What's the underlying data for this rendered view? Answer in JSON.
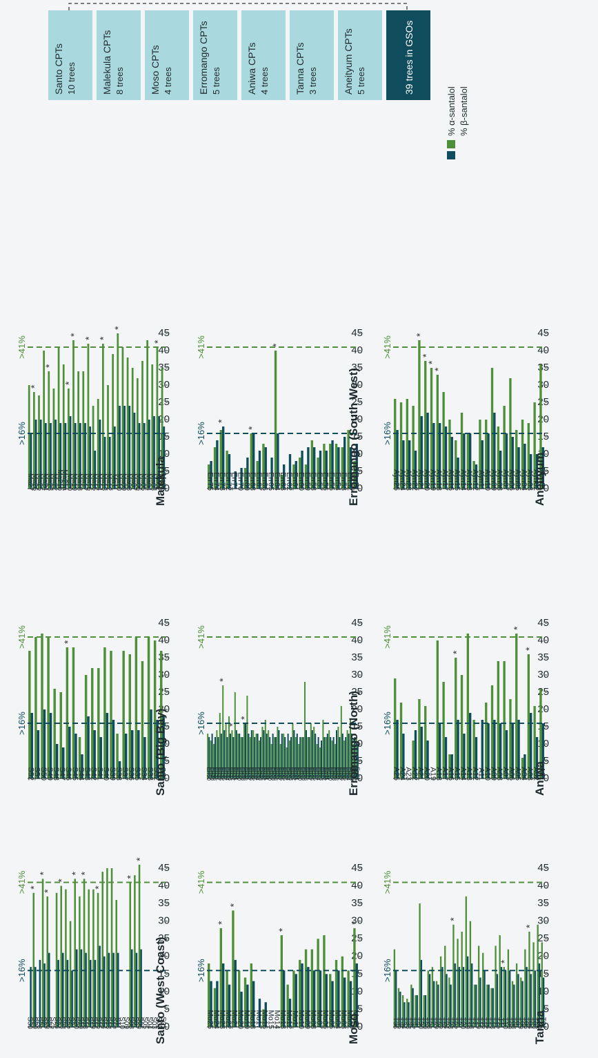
{
  "colors": {
    "alpha": "#4f8f3a",
    "beta": "#0f4d5c",
    "box_light": "#a9d8de",
    "box_dark": "#0f4d5c",
    "text": "#1f2a2e"
  },
  "y_ticks": [
    "0",
    "5",
    "10",
    "15",
    "20",
    "25",
    "30",
    "35",
    "40",
    "45"
  ],
  "threshold_labels": {
    "alpha": ">41%",
    "beta": ">16%"
  },
  "legend": {
    "alpha": "% α-santalol",
    "beta": "% β-santalol"
  },
  "region_boxes": [
    {
      "title": "Santo CPTs",
      "sub": "10 trees"
    },
    {
      "title": "Malekula CPTs",
      "sub": "8 trees"
    },
    {
      "title": "Moso CPTs",
      "sub": "4 trees"
    },
    {
      "title": "Erromango CPTs",
      "sub": "5 trees"
    },
    {
      "title": "Aniwa CPTs",
      "sub": "4 trees"
    },
    {
      "title": "Tanna CPTs",
      "sub": "3 trees"
    },
    {
      "title": "Aneityum CPTs",
      "sub": "5 trees"
    }
  ],
  "gso_box": "39 trees in GSOs",
  "chart_data": [
    {
      "type": "bar",
      "title": "Santo (West Coast)",
      "ylim": [
        0,
        45
      ],
      "thresholds": {
        "alpha": 41,
        "beta": 16
      },
      "categories": [
        "S01",
        "S02",
        "S03",
        "S04",
        "S05",
        "S06",
        "S07",
        "S08",
        "S09",
        "S10",
        "S11",
        "S12",
        "S13",
        "S14",
        "S15",
        "S16",
        "S17",
        "S18",
        "S19",
        "S20",
        "S21",
        "S22",
        "S23",
        "S24",
        "S25",
        "S26",
        "S27",
        "S28",
        "S29",
        "S30"
      ],
      "series": [
        {
          "name": "% α-santalol",
          "values": [
            0,
            0,
            0,
            0,
            0,
            46,
            43,
            41,
            0,
            0,
            36,
            45,
            45,
            44,
            38,
            39,
            39,
            42,
            37,
            42,
            30,
            39,
            40,
            38,
            0,
            37,
            42,
            0,
            38,
            0
          ]
        },
        {
          "name": "% β-santalol",
          "values": [
            0,
            0,
            0,
            0,
            0,
            22,
            21,
            22,
            0,
            0,
            21,
            21,
            21,
            20,
            23,
            19,
            19,
            21,
            22,
            22,
            16,
            19,
            21,
            19,
            0,
            21,
            18,
            19,
            17,
            17
          ]
        }
      ],
      "asterisks": [
        "S06",
        "S08",
        "S15",
        "S18",
        "S20",
        "S23",
        "S26",
        "S27",
        "S29"
      ]
    },
    {
      "type": "bar",
      "title": "Santo (Big Bay)",
      "ylim": [
        0,
        45
      ],
      "thresholds": {
        "alpha": 41,
        "beta": 16
      },
      "categories": [
        "S31",
        "S32",
        "S33",
        "S34",
        "S35",
        "S36",
        "S37",
        "S38",
        "S39",
        "S40",
        "S41",
        "S42",
        "S43",
        "S44",
        "S45",
        "S46",
        "S47",
        "S48",
        "S49",
        "S50",
        "S51",
        "S52"
      ],
      "series": [
        {
          "name": "% α-santalol",
          "values": [
            37,
            40,
            41,
            34,
            41,
            36,
            37,
            13,
            37,
            38,
            32,
            32,
            30,
            12,
            38,
            38,
            25,
            26,
            41,
            42,
            41,
            37
          ]
        },
        {
          "name": "% β-santalol",
          "values": [
            18,
            17,
            20,
            12,
            14,
            14,
            13,
            5,
            17,
            19,
            12,
            14,
            18,
            7,
            13,
            15,
            9,
            10,
            19,
            20,
            14,
            19
          ]
        }
      ],
      "asterisks": [
        "S46"
      ]
    },
    {
      "type": "bar",
      "title": "Malekula",
      "ylim": [
        0,
        45
      ],
      "thresholds": {
        "alpha": 41,
        "beta": 16
      },
      "categories": [
        "Ma01",
        "Ma02",
        "Ma03",
        "Ma04",
        "Ma05",
        "Ma06",
        "Ma07",
        "Ma08",
        "Ma09",
        "Ma10",
        "Ma11",
        "Ma12",
        "Ma13",
        "Ma14",
        "Ma15",
        "Ma16",
        "Ma17",
        "Ma18",
        "Ma19",
        "Ma20",
        "Ma21a",
        "Ma21b",
        "Ma22",
        "Ma23",
        "Ma24",
        "Ma25",
        "Ma26",
        "Ma27"
      ],
      "series": [
        {
          "name": "% α-santalol",
          "values": [
            35,
            41,
            36,
            43,
            37,
            32,
            35,
            38,
            41,
            45,
            39,
            30,
            42,
            26,
            24,
            42,
            34,
            34,
            43,
            29,
            36,
            41,
            29,
            34,
            40,
            27,
            28,
            30
          ]
        },
        {
          "name": "% β-santalol",
          "values": [
            18,
            21,
            21,
            20,
            19,
            19,
            22,
            24,
            24,
            24,
            18,
            15,
            15,
            20,
            11,
            18,
            19,
            19,
            19,
            21,
            19,
            19,
            20,
            19,
            19,
            20,
            20,
            16
          ]
        }
      ],
      "asterisks": [
        "Ma02",
        "Ma10",
        "Ma13",
        "Ma16",
        "Ma19",
        "Ma20",
        "Ma23",
        "Ma26"
      ]
    },
    {
      "type": "bar",
      "title": "Moso",
      "ylim": [
        0,
        45
      ],
      "thresholds": {
        "alpha": 41,
        "beta": 16
      },
      "categories": [
        "Mo01",
        "Mo02",
        "Mo03",
        "Mo04",
        "Mo05",
        "Mo06",
        "Mo07",
        "Mo08",
        "Mo09",
        "Mo10",
        "Mo11",
        "Mo12",
        "Mo13",
        "Mo14",
        "Mo15",
        "Mo16",
        "Mo17",
        "Mo18",
        "Mo19",
        "Mo20",
        "Mo21",
        "Mo22",
        "Mo23",
        "Mo24",
        "Mo25"
      ],
      "series": [
        {
          "name": "% α-santalol",
          "values": [
            28,
            16,
            20,
            19,
            15,
            26,
            25,
            22,
            22,
            19,
            16,
            12,
            26,
            0,
            0,
            5,
            0,
            18,
            14,
            16,
            33,
            16,
            28,
            11,
            18
          ]
        },
        {
          "name": "% β-santalol",
          "values": [
            18,
            13,
            14,
            16,
            13,
            15,
            16,
            16,
            17,
            18,
            15,
            8,
            16,
            0,
            0,
            7,
            8,
            13,
            12,
            10,
            19,
            12,
            18,
            13,
            13
          ]
        }
      ],
      "asterisks": [
        "Mo01",
        "Mo13",
        "Mo21",
        "Mo23"
      ]
    },
    {
      "type": "bar",
      "title": "Erromango (North)",
      "ylim": [
        0,
        45
      ],
      "thresholds": {
        "alpha": 41,
        "beta": 16
      },
      "categories": [
        "Err01",
        "Err02",
        "Err03",
        "Err04",
        "Err05",
        "Err06",
        "Err07",
        "Err08",
        "Err09",
        "Err10",
        "Err11",
        "Err12",
        "Err13",
        "Err14",
        "Err15",
        "Err16",
        "Err17",
        "Err18",
        "Err19",
        "Err20",
        "Err21",
        "Err22",
        "Err23",
        "Err24",
        "Err25",
        "Err26",
        "Err27",
        "Err28",
        "Err29",
        "Err30",
        "Err31",
        "Err32",
        "Err33",
        "Err34",
        "Err35",
        "Err36",
        "Err37",
        "Err38",
        "Err39",
        "Err40",
        "Err41",
        "Err42",
        "Err43",
        "Err44",
        "Err45",
        "Err46",
        "Err47",
        "Err48",
        "Err49",
        "Err50"
      ],
      "series": [
        {
          "name": "% α-santalol",
          "values": [
            12,
            10,
            17,
            14,
            11,
            21,
            15,
            10,
            11,
            14,
            12,
            17,
            9,
            10,
            15,
            16,
            12,
            28,
            12,
            10,
            12,
            16,
            11,
            9,
            13,
            10,
            15,
            12,
            10,
            14,
            17,
            15,
            11,
            13,
            14,
            12,
            24,
            16,
            12,
            13,
            25,
            14,
            18,
            16,
            27,
            19,
            14,
            10,
            11,
            13
          ]
        },
        {
          "name": "% β-santalol",
          "values": [
            10,
            12,
            13,
            13,
            12,
            13,
            12,
            14,
            12,
            12,
            13,
            12,
            11,
            12,
            13,
            14,
            12,
            14,
            12,
            12,
            13,
            14,
            12,
            13,
            12,
            13,
            14,
            12,
            13,
            12,
            13,
            14,
            12,
            13,
            12,
            14,
            13,
            16,
            12,
            13,
            14,
            12,
            13,
            12,
            14,
            13,
            12,
            12,
            13,
            12
          ]
        }
      ],
      "asterisks": [
        "Err38",
        "Err42",
        "Err45"
      ]
    },
    {
      "type": "bar",
      "title": "Erromango (South West)",
      "ylim": [
        0,
        45
      ],
      "thresholds": {
        "alpha": 41,
        "beta": 16
      },
      "categories": [
        "Err51",
        "Err52",
        "Err53",
        "Err54",
        "Err55",
        "Err56",
        "Err57",
        "Err58",
        "Err59",
        "Err60",
        "Err61",
        "Err62",
        "Err63",
        "Err64",
        "Err65",
        "Err66",
        "Err67",
        "Err68",
        "Err69",
        "Err70",
        "Err71",
        "Err72",
        "Err73",
        "Err74",
        "Err75"
      ],
      "series": [
        {
          "name": "% α-santalol",
          "values": [
            8,
            17,
            12,
            13,
            13,
            13,
            9,
            14,
            7,
            9,
            7,
            0,
            4,
            40,
            0,
            13,
            8,
            16,
            6,
            0,
            0,
            11,
            17,
            12,
            7
          ]
        },
        {
          "name": "% β-santalol",
          "values": [
            13,
            12,
            15,
            12,
            14,
            11,
            11,
            12,
            12,
            11,
            8,
            10,
            7,
            16,
            9,
            12,
            11,
            16,
            9,
            6,
            5,
            10,
            18,
            14,
            8
          ]
        }
      ],
      "asterisks": [
        "Err64",
        "Err68",
        "Err73"
      ]
    },
    {
      "type": "bar",
      "title": "Tanna",
      "ylim": [
        0,
        45
      ],
      "thresholds": {
        "alpha": 41,
        "beta": 16
      },
      "categories": [
        "T01",
        "T02",
        "T03",
        "T04",
        "T05",
        "T06",
        "T07",
        "T08",
        "T09",
        "T10",
        "T11",
        "T12",
        "T13",
        "T14",
        "T15",
        "T16",
        "T17",
        "T18",
        "T19",
        "T20",
        "T21",
        "T22",
        "T23",
        "T24",
        "T25",
        "T26",
        "T27",
        "T28",
        "T29",
        "T30",
        "T31",
        "T32",
        "T33",
        "T34",
        "T35",
        "T36"
      ],
      "series": [
        {
          "name": "% α-santalol",
          "values": [
            24,
            29,
            24,
            27,
            22,
            14,
            18,
            13,
            22,
            17,
            26,
            23,
            11,
            12,
            21,
            23,
            12,
            30,
            37,
            27,
            25,
            29,
            14,
            23,
            20,
            13,
            17,
            16,
            9,
            35,
            9,
            12,
            8,
            9,
            11,
            22
          ]
        },
        {
          "name": "% β-santalol",
          "values": [
            14,
            18,
            16,
            15,
            17,
            13,
            15,
            12,
            16,
            16,
            17,
            15,
            11,
            12,
            16,
            14,
            12,
            18,
            20,
            17,
            17,
            18,
            12,
            15,
            17,
            12,
            13,
            15,
            9,
            19,
            9,
            11,
            7,
            7,
            10,
            16
          ]
        }
      ],
      "asterisks": [
        "T04",
        "T10",
        "T22"
      ]
    },
    {
      "type": "bar",
      "title": "Aniwa",
      "ylim": [
        0,
        45
      ],
      "thresholds": {
        "alpha": 41,
        "beta": 16
      },
      "categories": [
        "A01",
        "A02",
        "A03",
        "A04",
        "A05",
        "A06",
        "A07",
        "A08",
        "A09",
        "A10",
        "A11",
        "A12",
        "A13",
        "A14",
        "A15",
        "A16",
        "A17",
        "A18",
        "A19",
        "A20",
        "A21",
        "A22",
        "A23",
        "A24",
        "A25"
      ],
      "series": [
        {
          "name": "% α-santalol",
          "values": [
            26,
            21,
            36,
            6,
            42,
            23,
            34,
            34,
            27,
            22,
            0,
            17,
            42,
            30,
            35,
            7,
            28,
            40,
            0,
            21,
            23,
            11,
            0,
            22,
            29
          ]
        },
        {
          "name": "% β-santalol",
          "values": [
            16,
            12,
            19,
            7,
            17,
            16,
            14,
            16,
            17,
            16,
            17,
            12,
            19,
            13,
            17,
            7,
            12,
            16,
            0,
            11,
            15,
            14,
            0,
            13,
            17
          ]
        }
      ],
      "asterisks": [
        "A03",
        "A05",
        "A15"
      ]
    },
    {
      "type": "bar",
      "title": "Aneityum",
      "ylim": [
        0,
        45
      ],
      "thresholds": {
        "alpha": 41,
        "beta": 16
      },
      "categories": [
        "Ayn01",
        "Ayn02",
        "Ayn03",
        "Ayn04",
        "Ayn05",
        "Ayn06",
        "Ayn07",
        "Ayn08",
        "Ayn09",
        "Ayn10",
        "Ayn11",
        "Ayn12",
        "Ayn13",
        "Ayn14",
        "Ayn15",
        "Ayn16",
        "Ayn17",
        "Ayn18",
        "Ayn19",
        "Ayn20",
        "Ayn21",
        "Ayn22",
        "Ayn23",
        "Ayn24",
        "Ayn25"
      ],
      "series": [
        {
          "name": "% α-santalol",
          "values": [
            36,
            25,
            19,
            20,
            17,
            32,
            24,
            18,
            35,
            20,
            20,
            8,
            16,
            22,
            14,
            20,
            28,
            33,
            35,
            37,
            43,
            24,
            26,
            25,
            26
          ]
        },
        {
          "name": "% β-santalol",
          "values": [
            12,
            10,
            10,
            13,
            12,
            15,
            16,
            11,
            22,
            16,
            14,
            7,
            16,
            16,
            9,
            15,
            18,
            19,
            19,
            22,
            21,
            11,
            14,
            14,
            17
          ]
        }
      ],
      "asterisks": [
        "Ayn18",
        "Ayn19",
        "Ayn20",
        "Ayn21"
      ]
    }
  ]
}
